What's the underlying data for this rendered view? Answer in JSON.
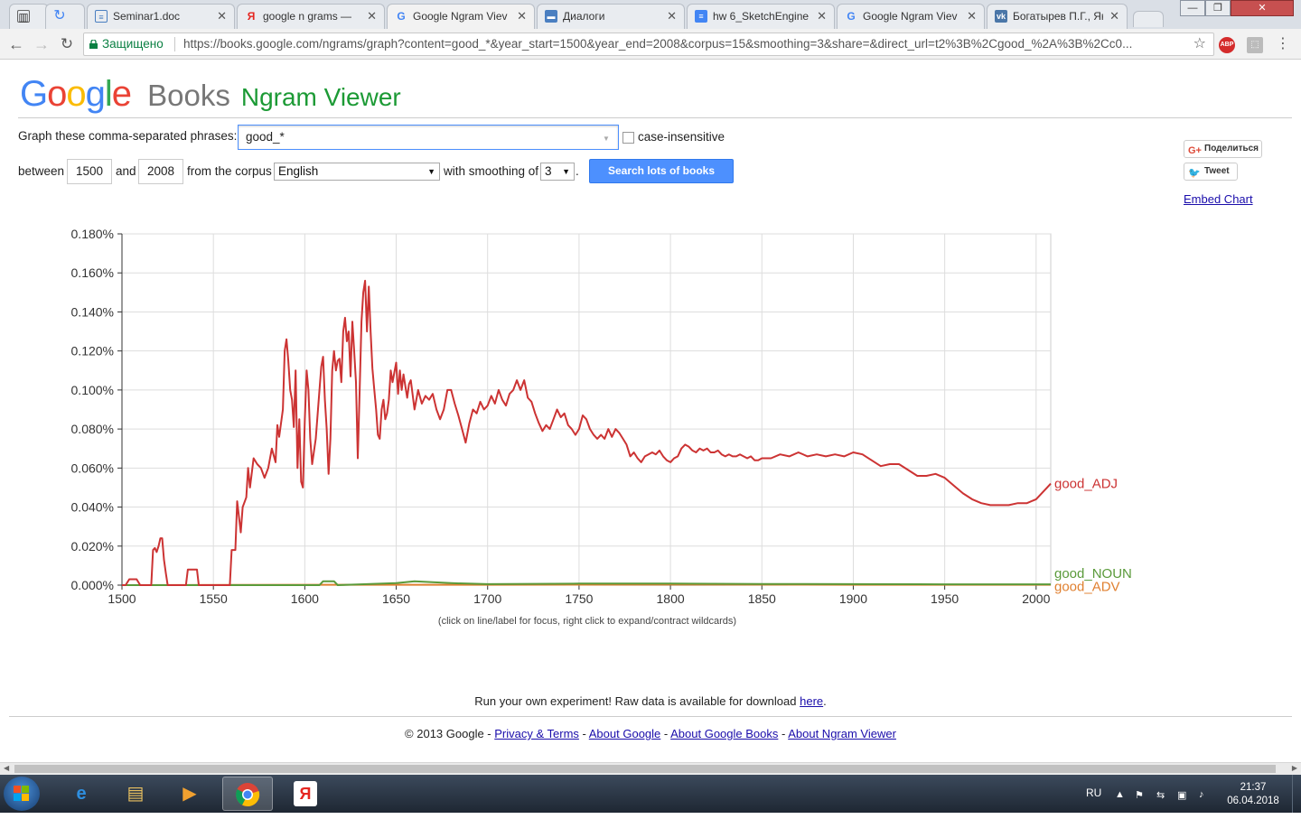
{
  "browser": {
    "tabs": [
      {
        "title": "",
        "icon": "apps-icon"
      },
      {
        "title": "",
        "icon": "loading-icon"
      },
      {
        "title": "Seminar1.doc",
        "icon": "doc-icon"
      },
      {
        "title": "google n grams — ",
        "icon": "yandex-icon"
      },
      {
        "title": "Google Ngram Viev",
        "icon": "google-icon",
        "active": true
      },
      {
        "title": "Диалоги",
        "icon": "chat-icon"
      },
      {
        "title": "hw 6_SketchEngine",
        "icon": "gdocs-icon"
      },
      {
        "title": "Google Ngram Viev",
        "icon": "google-icon"
      },
      {
        "title": "Богатырев П.Г., Яко",
        "icon": "vk-icon"
      }
    ],
    "secure_label": "Защищено",
    "url": "https://books.google.com/ngrams/graph?content=good_*&year_start=1500&year_end=2008&corpus=15&smoothing=3&share=&direct_url=t2%3B%2Cgood_%2A%3B%2Cc0...",
    "ext_abp": "ABP"
  },
  "logo": {
    "google": "Google",
    "books": "Books",
    "ngram": "Ngram Viewer"
  },
  "form": {
    "phrase_label": "Graph these comma-separated phrases:",
    "phrase_value": "good_*",
    "case_label": "case-insensitive",
    "between_label": "between",
    "year_start": "1500",
    "and_label": "and",
    "year_end": "2008",
    "corpus_label": "from the corpus",
    "corpus_value": "English",
    "smoothing_label": "with smoothing of",
    "smoothing_value": "3",
    "period": ".",
    "search_label": "Search lots of books"
  },
  "social": {
    "gplus": "Поделиться",
    "tweet": "Tweet",
    "embed": "Embed Chart"
  },
  "chart_hint": "(click on line/label for focus, right click to expand/contract wildcards)",
  "raw_data": {
    "text": "Run your own experiment! Raw data is available for download ",
    "link": "here",
    "end": "."
  },
  "footer": {
    "copyright": "© 2013 Google - ",
    "privacy": "Privacy & Terms",
    "sep": " - ",
    "about_google": "About Google",
    "about_books": "About Google Books",
    "about_ngram": "About Ngram Viewer"
  },
  "taskbar": {
    "lang": "RU",
    "time": "21:37",
    "date": "06.04.2018"
  },
  "chart_data": {
    "type": "line",
    "xlim": [
      1500,
      2008
    ],
    "ylim": [
      0,
      0.18
    ],
    "x_ticks": [
      1500,
      1550,
      1600,
      1650,
      1700,
      1750,
      1800,
      1850,
      1900,
      1950,
      2000
    ],
    "x_tick_labels": [
      "1500",
      "1550",
      "1600",
      "1650",
      "1700",
      "1750",
      "1800",
      "1850",
      "1900",
      "1950",
      "2000"
    ],
    "y_ticks": [
      0,
      0.02,
      0.04,
      0.06,
      0.08,
      0.1,
      0.12,
      0.14,
      0.16,
      0.18
    ],
    "y_tick_labels": [
      "0.000%",
      "0.020%",
      "0.040%",
      "0.060%",
      "0.080%",
      "0.100%",
      "0.120%",
      "0.140%",
      "0.160%",
      "0.180%"
    ],
    "grid": true,
    "legend": "right-end labels",
    "series": [
      {
        "name": "good_ADJ",
        "color": "#cc3333",
        "points": [
          [
            1500,
            0
          ],
          [
            1502,
            0
          ],
          [
            1504,
            0.003
          ],
          [
            1508,
            0.003
          ],
          [
            1510,
            0
          ],
          [
            1516,
            0
          ],
          [
            1517,
            0.018
          ],
          [
            1518,
            0.019
          ],
          [
            1519,
            0.017
          ],
          [
            1520,
            0.02
          ],
          [
            1521,
            0.024
          ],
          [
            1522,
            0.024
          ],
          [
            1523,
            0.013
          ],
          [
            1524,
            0.006
          ],
          [
            1525,
            0
          ],
          [
            1535,
            0
          ],
          [
            1536,
            0.008
          ],
          [
            1541,
            0.008
          ],
          [
            1542,
            0
          ],
          [
            1559,
            0
          ],
          [
            1560,
            0.018
          ],
          [
            1562,
            0.018
          ],
          [
            1563,
            0.043
          ],
          [
            1565,
            0.027
          ],
          [
            1566,
            0.04
          ],
          [
            1568,
            0.045
          ],
          [
            1569,
            0.06
          ],
          [
            1570,
            0.05
          ],
          [
            1572,
            0.065
          ],
          [
            1574,
            0.062
          ],
          [
            1576,
            0.06
          ],
          [
            1578,
            0.055
          ],
          [
            1580,
            0.06
          ],
          [
            1582,
            0.07
          ],
          [
            1584,
            0.063
          ],
          [
            1585,
            0.082
          ],
          [
            1586,
            0.076
          ],
          [
            1588,
            0.09
          ],
          [
            1589,
            0.12
          ],
          [
            1590,
            0.126
          ],
          [
            1591,
            0.115
          ],
          [
            1592,
            0.1
          ],
          [
            1593,
            0.095
          ],
          [
            1594,
            0.081
          ],
          [
            1595,
            0.11
          ],
          [
            1596,
            0.06
          ],
          [
            1597,
            0.085
          ],
          [
            1598,
            0.053
          ],
          [
            1599,
            0.05
          ],
          [
            1600,
            0.085
          ],
          [
            1601,
            0.11
          ],
          [
            1602,
            0.1
          ],
          [
            1603,
            0.075
          ],
          [
            1604,
            0.062
          ],
          [
            1606,
            0.075
          ],
          [
            1608,
            0.1
          ],
          [
            1609,
            0.112
          ],
          [
            1610,
            0.117
          ],
          [
            1611,
            0.095
          ],
          [
            1612,
            0.08
          ],
          [
            1613,
            0.057
          ],
          [
            1614,
            0.075
          ],
          [
            1615,
            0.11
          ],
          [
            1616,
            0.12
          ],
          [
            1617,
            0.11
          ],
          [
            1618,
            0.115
          ],
          [
            1619,
            0.116
          ],
          [
            1620,
            0.104
          ],
          [
            1621,
            0.13
          ],
          [
            1622,
            0.137
          ],
          [
            1623,
            0.125
          ],
          [
            1624,
            0.13
          ],
          [
            1625,
            0.107
          ],
          [
            1626,
            0.135
          ],
          [
            1627,
            0.12
          ],
          [
            1628,
            0.104
          ],
          [
            1629,
            0.065
          ],
          [
            1630,
            0.1
          ],
          [
            1631,
            0.135
          ],
          [
            1632,
            0.15
          ],
          [
            1633,
            0.156
          ],
          [
            1634,
            0.13
          ],
          [
            1635,
            0.153
          ],
          [
            1636,
            0.13
          ],
          [
            1637,
            0.111
          ],
          [
            1638,
            0.1
          ],
          [
            1639,
            0.09
          ],
          [
            1640,
            0.077
          ],
          [
            1641,
            0.075
          ],
          [
            1642,
            0.09
          ],
          [
            1643,
            0.095
          ],
          [
            1644,
            0.085
          ],
          [
            1645,
            0.088
          ],
          [
            1646,
            0.095
          ],
          [
            1647,
            0.11
          ],
          [
            1648,
            0.104
          ],
          [
            1650,
            0.114
          ],
          [
            1651,
            0.098
          ],
          [
            1652,
            0.11
          ],
          [
            1653,
            0.1
          ],
          [
            1654,
            0.108
          ],
          [
            1656,
            0.096
          ],
          [
            1657,
            0.103
          ],
          [
            1658,
            0.105
          ],
          [
            1660,
            0.09
          ],
          [
            1662,
            0.1
          ],
          [
            1664,
            0.093
          ],
          [
            1666,
            0.097
          ],
          [
            1668,
            0.095
          ],
          [
            1670,
            0.098
          ],
          [
            1672,
            0.09
          ],
          [
            1674,
            0.085
          ],
          [
            1676,
            0.09
          ],
          [
            1678,
            0.1
          ],
          [
            1680,
            0.1
          ],
          [
            1682,
            0.093
          ],
          [
            1684,
            0.087
          ],
          [
            1686,
            0.08
          ],
          [
            1688,
            0.073
          ],
          [
            1690,
            0.083
          ],
          [
            1692,
            0.09
          ],
          [
            1694,
            0.088
          ],
          [
            1696,
            0.094
          ],
          [
            1698,
            0.09
          ],
          [
            1700,
            0.092
          ],
          [
            1702,
            0.097
          ],
          [
            1704,
            0.093
          ],
          [
            1706,
            0.1
          ],
          [
            1708,
            0.095
          ],
          [
            1710,
            0.092
          ],
          [
            1712,
            0.098
          ],
          [
            1714,
            0.1
          ],
          [
            1716,
            0.105
          ],
          [
            1718,
            0.1
          ],
          [
            1720,
            0.105
          ],
          [
            1722,
            0.096
          ],
          [
            1724,
            0.094
          ],
          [
            1726,
            0.088
          ],
          [
            1728,
            0.083
          ],
          [
            1730,
            0.079
          ],
          [
            1732,
            0.082
          ],
          [
            1734,
            0.08
          ],
          [
            1736,
            0.085
          ],
          [
            1738,
            0.09
          ],
          [
            1740,
            0.086
          ],
          [
            1742,
            0.088
          ],
          [
            1744,
            0.082
          ],
          [
            1746,
            0.08
          ],
          [
            1748,
            0.077
          ],
          [
            1750,
            0.08
          ],
          [
            1752,
            0.087
          ],
          [
            1754,
            0.085
          ],
          [
            1756,
            0.08
          ],
          [
            1758,
            0.077
          ],
          [
            1760,
            0.075
          ],
          [
            1762,
            0.077
          ],
          [
            1764,
            0.075
          ],
          [
            1766,
            0.08
          ],
          [
            1768,
            0.076
          ],
          [
            1770,
            0.08
          ],
          [
            1772,
            0.078
          ],
          [
            1774,
            0.075
          ],
          [
            1776,
            0.072
          ],
          [
            1778,
            0.066
          ],
          [
            1780,
            0.068
          ],
          [
            1782,
            0.065
          ],
          [
            1784,
            0.063
          ],
          [
            1786,
            0.066
          ],
          [
            1788,
            0.067
          ],
          [
            1790,
            0.068
          ],
          [
            1792,
            0.067
          ],
          [
            1794,
            0.069
          ],
          [
            1796,
            0.066
          ],
          [
            1798,
            0.064
          ],
          [
            1800,
            0.063
          ],
          [
            1802,
            0.065
          ],
          [
            1804,
            0.066
          ],
          [
            1806,
            0.07
          ],
          [
            1808,
            0.072
          ],
          [
            1810,
            0.071
          ],
          [
            1812,
            0.069
          ],
          [
            1814,
            0.068
          ],
          [
            1816,
            0.07
          ],
          [
            1818,
            0.069
          ],
          [
            1820,
            0.07
          ],
          [
            1822,
            0.068
          ],
          [
            1824,
            0.068
          ],
          [
            1826,
            0.069
          ],
          [
            1828,
            0.067
          ],
          [
            1830,
            0.066
          ],
          [
            1832,
            0.067
          ],
          [
            1834,
            0.066
          ],
          [
            1836,
            0.066
          ],
          [
            1838,
            0.067
          ],
          [
            1840,
            0.066
          ],
          [
            1842,
            0.065
          ],
          [
            1844,
            0.066
          ],
          [
            1846,
            0.064
          ],
          [
            1848,
            0.064
          ],
          [
            1850,
            0.065
          ],
          [
            1855,
            0.065
          ],
          [
            1860,
            0.067
          ],
          [
            1865,
            0.066
          ],
          [
            1870,
            0.068
          ],
          [
            1875,
            0.066
          ],
          [
            1880,
            0.067
          ],
          [
            1885,
            0.066
          ],
          [
            1890,
            0.067
          ],
          [
            1895,
            0.066
          ],
          [
            1900,
            0.068
          ],
          [
            1905,
            0.067
          ],
          [
            1910,
            0.064
          ],
          [
            1915,
            0.061
          ],
          [
            1920,
            0.062
          ],
          [
            1925,
            0.062
          ],
          [
            1930,
            0.059
          ],
          [
            1935,
            0.056
          ],
          [
            1940,
            0.056
          ],
          [
            1945,
            0.057
          ],
          [
            1950,
            0.055
          ],
          [
            1955,
            0.051
          ],
          [
            1960,
            0.047
          ],
          [
            1965,
            0.044
          ],
          [
            1970,
            0.042
          ],
          [
            1975,
            0.041
          ],
          [
            1980,
            0.041
          ],
          [
            1985,
            0.041
          ],
          [
            1990,
            0.042
          ],
          [
            1995,
            0.042
          ],
          [
            2000,
            0.044
          ],
          [
            2003,
            0.047
          ],
          [
            2006,
            0.05
          ],
          [
            2008,
            0.052
          ]
        ]
      },
      {
        "name": "good_NOUN",
        "color": "#5a9a3a",
        "points": [
          [
            1500,
            0
          ],
          [
            1608,
            0
          ],
          [
            1610,
            0.002
          ],
          [
            1616,
            0.002
          ],
          [
            1618,
            0
          ],
          [
            1650,
            0.001
          ],
          [
            1660,
            0.002
          ],
          [
            1670,
            0.0015
          ],
          [
            1680,
            0.001
          ],
          [
            1700,
            0.0005
          ],
          [
            1750,
            0.0008
          ],
          [
            1800,
            0.0008
          ],
          [
            1850,
            0.0006
          ],
          [
            1900,
            0.0005
          ],
          [
            1950,
            0.0004
          ],
          [
            2008,
            0.0004
          ]
        ]
      },
      {
        "name": "good_ADV",
        "color": "#e08030",
        "points": [
          [
            1500,
            0
          ],
          [
            1600,
            0.0002
          ],
          [
            1700,
            0.0002
          ],
          [
            1800,
            0.0003
          ],
          [
            1900,
            0.0002
          ],
          [
            2008,
            0.0002
          ]
        ]
      }
    ]
  }
}
